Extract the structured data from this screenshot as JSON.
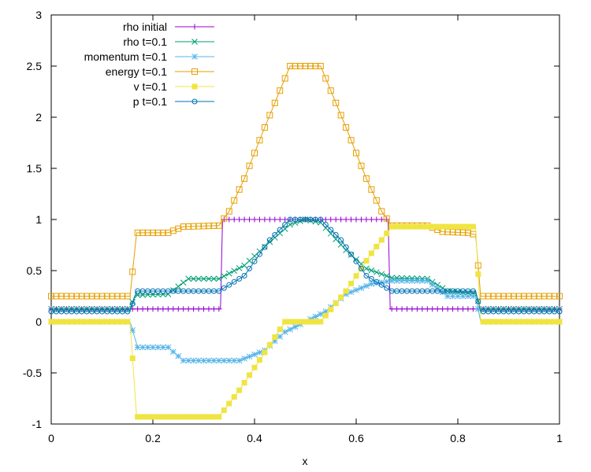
{
  "chart_data": {
    "type": "line",
    "xlabel": "x",
    "ylabel": "",
    "xlim": [
      0,
      1
    ],
    "ylim": [
      -1,
      3
    ],
    "x_ticks": [
      "0",
      "0.2",
      "0.4",
      "0.6",
      "0.8",
      "1"
    ],
    "y_ticks": [
      "-1",
      "-0.5",
      "0",
      "0.5",
      "1",
      "1.5",
      "2",
      "2.5",
      "3"
    ],
    "grid": false,
    "legend_position": "top-left",
    "series": [
      {
        "name": "rho initial",
        "color": "#9400d3",
        "marker": "plus",
        "points": [
          [
            0,
            0.125
          ],
          [
            0.333,
            0.125
          ],
          [
            0.337,
            1.0
          ],
          [
            0.663,
            1.0
          ],
          [
            0.667,
            0.125
          ],
          [
            1,
            0.125
          ]
        ]
      },
      {
        "name": "rho t=0.1",
        "color": "#009e73",
        "marker": "cross",
        "points": [
          [
            0,
            0.125
          ],
          [
            0.155,
            0.125
          ],
          [
            0.165,
            0.26
          ],
          [
            0.23,
            0.27
          ],
          [
            0.27,
            0.42
          ],
          [
            0.33,
            0.42
          ],
          [
            0.38,
            0.55
          ],
          [
            0.43,
            0.78
          ],
          [
            0.47,
            0.95
          ],
          [
            0.5,
            1.0
          ],
          [
            0.53,
            0.97
          ],
          [
            0.58,
            0.7
          ],
          [
            0.62,
            0.52
          ],
          [
            0.67,
            0.43
          ],
          [
            0.74,
            0.42
          ],
          [
            0.78,
            0.3
          ],
          [
            0.835,
            0.28
          ],
          [
            0.845,
            0.125
          ],
          [
            1,
            0.125
          ]
        ]
      },
      {
        "name": "momentum t=0.1",
        "color": "#56b4e9",
        "marker": "star",
        "points": [
          [
            0,
            0.0
          ],
          [
            0.155,
            0.0
          ],
          [
            0.17,
            -0.25
          ],
          [
            0.23,
            -0.25
          ],
          [
            0.26,
            -0.38
          ],
          [
            0.37,
            -0.38
          ],
          [
            0.42,
            -0.28
          ],
          [
            0.46,
            -0.1
          ],
          [
            0.5,
            0.0
          ],
          [
            0.54,
            0.1
          ],
          [
            0.58,
            0.27
          ],
          [
            0.63,
            0.37
          ],
          [
            0.67,
            0.4
          ],
          [
            0.74,
            0.4
          ],
          [
            0.78,
            0.25
          ],
          [
            0.835,
            0.25
          ],
          [
            0.845,
            0.0
          ],
          [
            1,
            0.0
          ]
        ]
      },
      {
        "name": "energy t=0.1",
        "color": "#e69f00",
        "marker": "box",
        "points": [
          [
            0,
            0.25
          ],
          [
            0.155,
            0.25
          ],
          [
            0.168,
            0.87
          ],
          [
            0.23,
            0.87
          ],
          [
            0.26,
            0.93
          ],
          [
            0.33,
            0.94
          ],
          [
            0.35,
            1.08
          ],
          [
            0.38,
            1.4
          ],
          [
            0.42,
            1.9
          ],
          [
            0.47,
            2.5
          ],
          [
            0.53,
            2.5
          ],
          [
            0.58,
            1.9
          ],
          [
            0.62,
            1.4
          ],
          [
            0.65,
            1.08
          ],
          [
            0.67,
            0.94
          ],
          [
            0.74,
            0.94
          ],
          [
            0.77,
            0.88
          ],
          [
            0.82,
            0.87
          ],
          [
            0.835,
            0.85
          ],
          [
            0.845,
            0.25
          ],
          [
            1,
            0.25
          ]
        ]
      },
      {
        "name": "v t=0.1",
        "color": "#f0e442",
        "marker": "filled-box",
        "points": [
          [
            0,
            0.0
          ],
          [
            0.155,
            0.0
          ],
          [
            0.168,
            -0.93
          ],
          [
            0.33,
            -0.93
          ],
          [
            0.37,
            -0.67
          ],
          [
            0.42,
            -0.3
          ],
          [
            0.46,
            0.0
          ],
          [
            0.53,
            0.0
          ],
          [
            0.58,
            0.3
          ],
          [
            0.63,
            0.67
          ],
          [
            0.67,
            0.93
          ],
          [
            0.835,
            0.93
          ],
          [
            0.845,
            0.0
          ],
          [
            1,
            0.0
          ]
        ]
      },
      {
        "name": "p t=0.1",
        "color": "#0072b2",
        "marker": "circle",
        "points": [
          [
            0,
            0.1
          ],
          [
            0.155,
            0.1
          ],
          [
            0.168,
            0.3
          ],
          [
            0.33,
            0.3
          ],
          [
            0.38,
            0.45
          ],
          [
            0.43,
            0.8
          ],
          [
            0.47,
            1.0
          ],
          [
            0.53,
            1.0
          ],
          [
            0.57,
            0.8
          ],
          [
            0.62,
            0.45
          ],
          [
            0.67,
            0.3
          ],
          [
            0.835,
            0.3
          ],
          [
            0.845,
            0.1
          ],
          [
            1,
            0.1
          ]
        ]
      }
    ]
  }
}
